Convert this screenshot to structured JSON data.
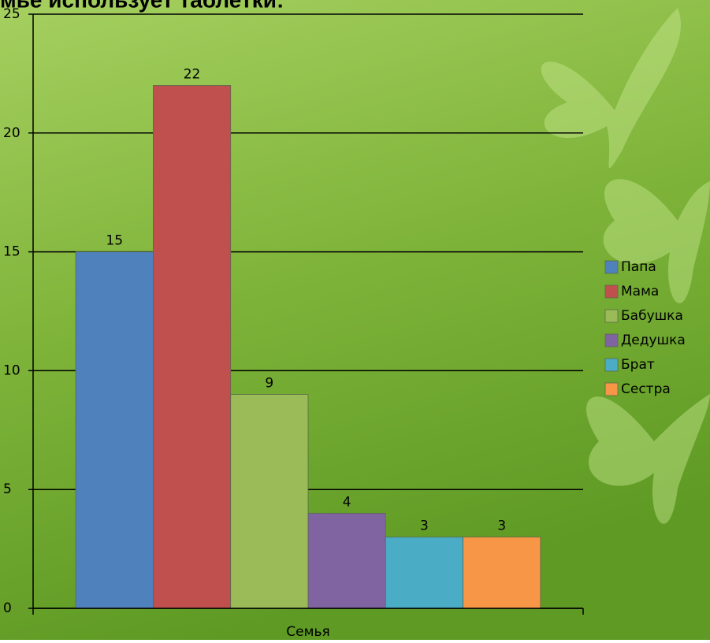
{
  "chart_data": {
    "type": "bar",
    "title": "мье использует таблетки:",
    "categories": [
      "Семья"
    ],
    "series": [
      {
        "name": "Папа",
        "color": "#4f81bd",
        "values": [
          15
        ]
      },
      {
        "name": "Мама",
        "color": "#c0504d",
        "values": [
          22
        ]
      },
      {
        "name": "Бабушка",
        "color": "#9bbb59",
        "values": [
          9
        ]
      },
      {
        "name": "Дедушка",
        "color": "#8064a2",
        "values": [
          4
        ]
      },
      {
        "name": "Брат",
        "color": "#4bacc6",
        "values": [
          3
        ]
      },
      {
        "name": "Сестра",
        "color": "#f79646",
        "values": [
          3
        ]
      }
    ],
    "ylim": [
      0,
      25
    ],
    "yticks": [
      0,
      5,
      10,
      15,
      20,
      25
    ],
    "grid": true,
    "legend": "right"
  }
}
